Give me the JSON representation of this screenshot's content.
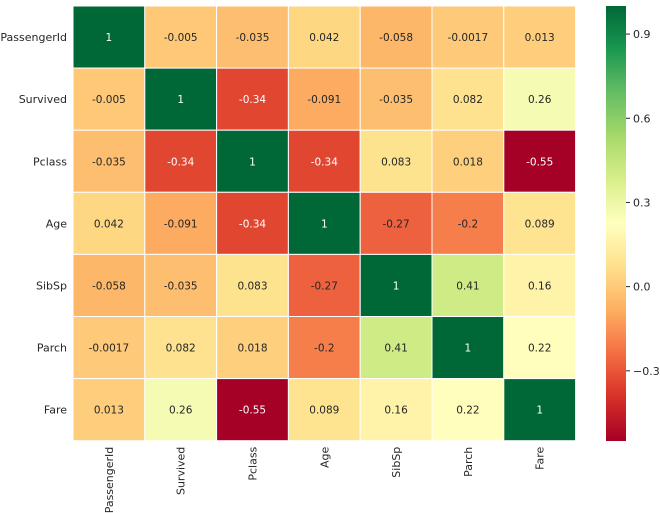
{
  "chart_data": {
    "type": "heatmap",
    "title": "",
    "xlabel": "",
    "ylabel": "",
    "row_labels": [
      "PassengerId",
      "Survived",
      "Pclass",
      "Age",
      "SibSp",
      "Parch",
      "Fare"
    ],
    "col_labels": [
      "PassengerId",
      "Survived",
      "Pclass",
      "Age",
      "SibSp",
      "Parch",
      "Fare"
    ],
    "values": [
      [
        1,
        -0.005,
        -0.035,
        0.042,
        -0.058,
        -0.0017,
        0.013
      ],
      [
        -0.005,
        1,
        -0.34,
        -0.091,
        -0.035,
        0.082,
        0.26
      ],
      [
        -0.035,
        -0.34,
        1,
        -0.34,
        0.083,
        0.018,
        -0.55
      ],
      [
        0.042,
        -0.091,
        -0.34,
        1,
        -0.27,
        -0.2,
        0.089
      ],
      [
        -0.058,
        -0.035,
        0.083,
        -0.27,
        1,
        0.41,
        0.16
      ],
      [
        -0.0017,
        0.082,
        0.018,
        -0.2,
        0.41,
        1,
        0.22
      ],
      [
        0.013,
        0.26,
        -0.55,
        0.089,
        0.16,
        0.22,
        1
      ]
    ],
    "annotations": [
      [
        "1",
        "-0.005",
        "-0.035",
        "0.042",
        "-0.058",
        "-0.0017",
        "0.013"
      ],
      [
        "-0.005",
        "1",
        "-0.34",
        "-0.091",
        "-0.035",
        "0.082",
        "0.26"
      ],
      [
        "-0.035",
        "-0.34",
        "1",
        "-0.34",
        "0.083",
        "0.018",
        "-0.55"
      ],
      [
        "0.042",
        "-0.091",
        "-0.34",
        "1",
        "-0.27",
        "-0.2",
        "0.089"
      ],
      [
        "-0.058",
        "-0.035",
        "0.083",
        "-0.27",
        "1",
        "0.41",
        "0.16"
      ],
      [
        "-0.0017",
        "0.082",
        "0.018",
        "-0.2",
        "0.41",
        "1",
        "0.22"
      ],
      [
        "0.013",
        "0.26",
        "-0.55",
        "0.089",
        "0.16",
        "0.22",
        "1"
      ]
    ],
    "colormap": "RdYlGn",
    "vmin": -0.55,
    "vmax": 1,
    "colorbar": {
      "ticks": [
        0.9,
        0.6,
        0.3,
        0.0,
        -0.3
      ],
      "tick_labels": [
        "0.9",
        "0.6",
        "0.3",
        "0.0",
        "−0.3"
      ]
    },
    "grid": false,
    "cell_border_color": "#ffffff"
  }
}
